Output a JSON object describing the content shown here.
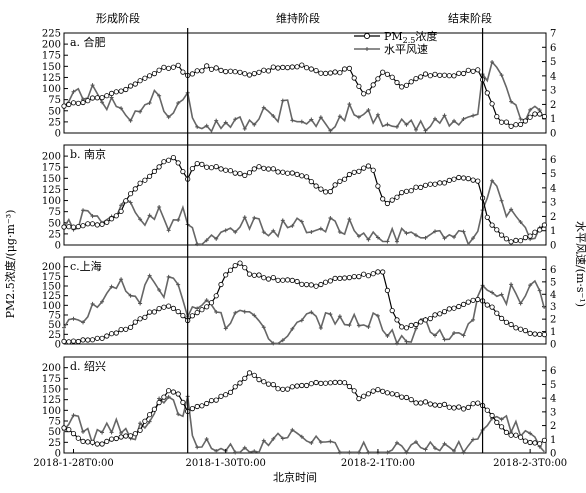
{
  "chart_data": {
    "type": "line",
    "stage_labels": [
      "形成阶段",
      "维持阶段",
      "结束阶段"
    ],
    "xlabel": "北京时间",
    "ylabel_left": "PM2.5浓度/(μg·m⁻³)",
    "ylabel_right": "水平风速/(m·s⁻¹)",
    "x_tick_labels": [
      "2018-1-28T0:00",
      "2018-1-30T0:00",
      "2018-2-1T0:00",
      "2018-2-3T0:00"
    ],
    "x_tick_hours": [
      0,
      48,
      96,
      144
    ],
    "x_range_hours": [
      -3,
      149
    ],
    "stage_boundary_hours": [
      36,
      129
    ],
    "legend": {
      "pm_label": "PM2.5浓度",
      "pm_label_base": "PM",
      "pm_label_sub": "2.5",
      "pm_label_rest": "浓度",
      "wind_label": "水平风速"
    },
    "colors": {
      "pm_line": "#000000",
      "pm_marker_fill": "#ffffff",
      "wind_line": "#666666",
      "wind_marker": "#555555"
    },
    "panels": [
      {
        "label": "a. 合肥",
        "ylim_left": [
          0,
          225
        ],
        "ylim_right": [
          0,
          7
        ],
        "yticks_left": [
          0,
          25,
          50,
          75,
          100,
          125,
          150,
          175,
          200,
          225
        ],
        "yticks_right": [
          0,
          1,
          2,
          3,
          4,
          5,
          6,
          7
        ],
        "pm25_keyframes": [
          [
            -3,
            62
          ],
          [
            6,
            76
          ],
          [
            12,
            88
          ],
          [
            18,
            103
          ],
          [
            24,
            130
          ],
          [
            28,
            145
          ],
          [
            33,
            152
          ],
          [
            36,
            128
          ],
          [
            40,
            140
          ],
          [
            42,
            148
          ],
          [
            56,
            130
          ],
          [
            64,
            148
          ],
          [
            72,
            152
          ],
          [
            80,
            130
          ],
          [
            87,
            145
          ],
          [
            92,
            82
          ],
          [
            98,
            140
          ],
          [
            104,
            100
          ],
          [
            110,
            130
          ],
          [
            118,
            128
          ],
          [
            124,
            138
          ],
          [
            128,
            145
          ],
          [
            130,
            100
          ],
          [
            134,
            28
          ],
          [
            138,
            18
          ],
          [
            142,
            22
          ],
          [
            146,
            48
          ],
          [
            149,
            35
          ]
        ],
        "wind_keyframes": [
          [
            -3,
            2.1
          ],
          [
            1,
            3.5
          ],
          [
            4,
            2.5
          ],
          [
            6,
            3.7
          ],
          [
            9,
            1.8
          ],
          [
            13,
            2.3
          ],
          [
            18,
            1.2
          ],
          [
            22,
            1.5
          ],
          [
            26,
            3.0
          ],
          [
            30,
            1.2
          ],
          [
            36,
            3.2
          ],
          [
            38,
            1.0
          ],
          [
            44,
            0.5
          ],
          [
            50,
            0.8
          ],
          [
            56,
            0.6
          ],
          [
            60,
            1.4
          ],
          [
            64,
            0.9
          ],
          [
            67,
            2.8
          ],
          [
            70,
            0.4
          ],
          [
            76,
            0.7
          ],
          [
            82,
            0.6
          ],
          [
            88,
            1.8
          ],
          [
            92,
            1.2
          ],
          [
            98,
            0.9
          ],
          [
            104,
            0.6
          ],
          [
            110,
            0.5
          ],
          [
            116,
            1.0
          ],
          [
            122,
            0.6
          ],
          [
            127,
            0.8
          ],
          [
            129,
            4.6
          ],
          [
            131,
            3.8
          ],
          [
            133,
            5.2
          ],
          [
            135,
            4.1
          ],
          [
            137,
            2.5
          ],
          [
            140,
            1.4
          ],
          [
            143,
            1.3
          ],
          [
            146,
            1.5
          ],
          [
            149,
            0.3
          ]
        ],
        "wind_amp": 0.5
      },
      {
        "label": "b. 南京",
        "ylim_left": [
          0,
          225
        ],
        "ylim_right": [
          0,
          7
        ],
        "yticks_left": [
          0,
          25,
          50,
          75,
          100,
          125,
          150,
          175,
          200
        ],
        "yticks_right": [
          0,
          1,
          2,
          3,
          4,
          5,
          6
        ],
        "pm25_keyframes": [
          [
            -3,
            42
          ],
          [
            5,
            45
          ],
          [
            10,
            50
          ],
          [
            14,
            65
          ],
          [
            18,
            118
          ],
          [
            23,
            150
          ],
          [
            28,
            185
          ],
          [
            32,
            195
          ],
          [
            36,
            148
          ],
          [
            38,
            182
          ],
          [
            48,
            170
          ],
          [
            54,
            158
          ],
          [
            58,
            175
          ],
          [
            66,
            165
          ],
          [
            74,
            150
          ],
          [
            80,
            115
          ],
          [
            84,
            145
          ],
          [
            90,
            168
          ],
          [
            94,
            178
          ],
          [
            98,
            90
          ],
          [
            104,
            118
          ],
          [
            110,
            132
          ],
          [
            116,
            140
          ],
          [
            122,
            150
          ],
          [
            128,
            145
          ],
          [
            130,
            70
          ],
          [
            133,
            35
          ],
          [
            138,
            8
          ],
          [
            143,
            15
          ],
          [
            149,
            45
          ]
        ],
        "wind_keyframes": [
          [
            -3,
            1.5
          ],
          [
            1,
            1.0
          ],
          [
            4,
            2.8
          ],
          [
            7,
            1.6
          ],
          [
            11,
            1.2
          ],
          [
            15,
            2.6
          ],
          [
            18,
            3.3
          ],
          [
            22,
            1.6
          ],
          [
            26,
            2.3
          ],
          [
            30,
            1.4
          ],
          [
            34,
            2.6
          ],
          [
            36,
            1.2
          ],
          [
            40,
            0.3
          ],
          [
            46,
            0.2
          ],
          [
            52,
            1.4
          ],
          [
            58,
            1.3
          ],
          [
            64,
            1.1
          ],
          [
            70,
            1.5
          ],
          [
            76,
            1.0
          ],
          [
            82,
            1.4
          ],
          [
            88,
            1.2
          ],
          [
            94,
            0.9
          ],
          [
            100,
            0.5
          ],
          [
            106,
            1.0
          ],
          [
            112,
            0.4
          ],
          [
            118,
            0.6
          ],
          [
            124,
            0.4
          ],
          [
            128,
            0.5
          ],
          [
            130,
            3.6
          ],
          [
            133,
            4.5
          ],
          [
            136,
            2.0
          ],
          [
            140,
            2.4
          ],
          [
            144,
            1.0
          ],
          [
            148,
            1.0
          ],
          [
            149,
            0.5
          ]
        ],
        "wind_amp": 0.6
      },
      {
        "label": "c.上海",
        "ylim_left": [
          0,
          225
        ],
        "ylim_right": [
          0,
          7
        ],
        "yticks_left": [
          0,
          25,
          50,
          75,
          100,
          125,
          150,
          175,
          200
        ],
        "yticks_right": [
          0,
          1,
          2,
          3,
          4,
          5,
          6
        ],
        "pm25_keyframes": [
          [
            -3,
            8
          ],
          [
            6,
            10
          ],
          [
            12,
            25
          ],
          [
            18,
            45
          ],
          [
            24,
            80
          ],
          [
            30,
            100
          ],
          [
            36,
            62
          ],
          [
            40,
            85
          ],
          [
            44,
            110
          ],
          [
            48,
            180
          ],
          [
            52,
            210
          ],
          [
            56,
            180
          ],
          [
            62,
            170
          ],
          [
            70,
            162
          ],
          [
            76,
            148
          ],
          [
            82,
            168
          ],
          [
            88,
            175
          ],
          [
            94,
            180
          ],
          [
            98,
            190
          ],
          [
            100,
            90
          ],
          [
            104,
            40
          ],
          [
            110,
            60
          ],
          [
            116,
            80
          ],
          [
            122,
            100
          ],
          [
            128,
            118
          ],
          [
            132,
            95
          ],
          [
            136,
            60
          ],
          [
            140,
            38
          ],
          [
            144,
            28
          ],
          [
            149,
            25
          ]
        ],
        "wind_keyframes": [
          [
            -3,
            1.6
          ],
          [
            4,
            2.0
          ],
          [
            8,
            3.4
          ],
          [
            12,
            4.0
          ],
          [
            16,
            4.8
          ],
          [
            20,
            3.5
          ],
          [
            24,
            5.0
          ],
          [
            28,
            4.3
          ],
          [
            32,
            5.2
          ],
          [
            36,
            2.5
          ],
          [
            40,
            3.5
          ],
          [
            44,
            2.8
          ],
          [
            48,
            1.7
          ],
          [
            52,
            2.2
          ],
          [
            58,
            2.0
          ],
          [
            62,
            0.5
          ],
          [
            68,
            0.8
          ],
          [
            74,
            2.0
          ],
          [
            80,
            1.8
          ],
          [
            86,
            2.2
          ],
          [
            92,
            2.0
          ],
          [
            96,
            1.8
          ],
          [
            100,
            0.8
          ],
          [
            104,
            0.2
          ],
          [
            110,
            1.5
          ],
          [
            116,
            1.0
          ],
          [
            122,
            1.0
          ],
          [
            126,
            2.5
          ],
          [
            130,
            5.2
          ],
          [
            134,
            3.0
          ],
          [
            138,
            4.2
          ],
          [
            142,
            3.6
          ],
          [
            145,
            5.8
          ],
          [
            149,
            3.2
          ]
        ],
        "wind_amp": 0.7
      },
      {
        "label": "d. 绍兴",
        "ylim_left": [
          0,
          225
        ],
        "ylim_right": [
          0,
          7
        ],
        "yticks_left": [
          0,
          25,
          50,
          75,
          100,
          125,
          150,
          175,
          200
        ],
        "yticks_right": [
          0,
          1,
          2,
          3,
          4,
          5,
          6
        ],
        "pm25_keyframes": [
          [
            -3,
            60
          ],
          [
            3,
            30
          ],
          [
            8,
            22
          ],
          [
            14,
            35
          ],
          [
            20,
            45
          ],
          [
            26,
            110
          ],
          [
            30,
            145
          ],
          [
            33,
            140
          ],
          [
            36,
            100
          ],
          [
            40,
            110
          ],
          [
            46,
            130
          ],
          [
            50,
            145
          ],
          [
            56,
            190
          ],
          [
            60,
            165
          ],
          [
            66,
            150
          ],
          [
            72,
            160
          ],
          [
            80,
            165
          ],
          [
            86,
            165
          ],
          [
            90,
            130
          ],
          [
            96,
            150
          ],
          [
            102,
            135
          ],
          [
            108,
            120
          ],
          [
            116,
            112
          ],
          [
            124,
            105
          ],
          [
            128,
            120
          ],
          [
            132,
            85
          ],
          [
            136,
            50
          ],
          [
            140,
            38
          ],
          [
            146,
            20
          ],
          [
            149,
            30
          ]
        ],
        "wind_keyframes": [
          [
            -3,
            1.9
          ],
          [
            2,
            2.5
          ],
          [
            6,
            1.0
          ],
          [
            10,
            2.2
          ],
          [
            14,
            2.0
          ],
          [
            18,
            1.2
          ],
          [
            22,
            2.0
          ],
          [
            26,
            3.5
          ],
          [
            30,
            3.8
          ],
          [
            34,
            2.8
          ],
          [
            36,
            3.7
          ],
          [
            38,
            0.7
          ],
          [
            44,
            0.3
          ],
          [
            50,
            0.1
          ],
          [
            56,
            0.2
          ],
          [
            62,
            0.5
          ],
          [
            68,
            1.3
          ],
          [
            74,
            0.8
          ],
          [
            80,
            0.5
          ],
          [
            86,
            0.4
          ],
          [
            92,
            0.2
          ],
          [
            100,
            0.1
          ],
          [
            108,
            0.4
          ],
          [
            116,
            0.5
          ],
          [
            122,
            0.3
          ],
          [
            128,
            1.0
          ],
          [
            130,
            2.5
          ],
          [
            134,
            3.0
          ],
          [
            138,
            2.0
          ],
          [
            142,
            1.5
          ],
          [
            146,
            1.3
          ],
          [
            149,
            0.5
          ]
        ],
        "wind_amp": 0.6
      }
    ]
  }
}
